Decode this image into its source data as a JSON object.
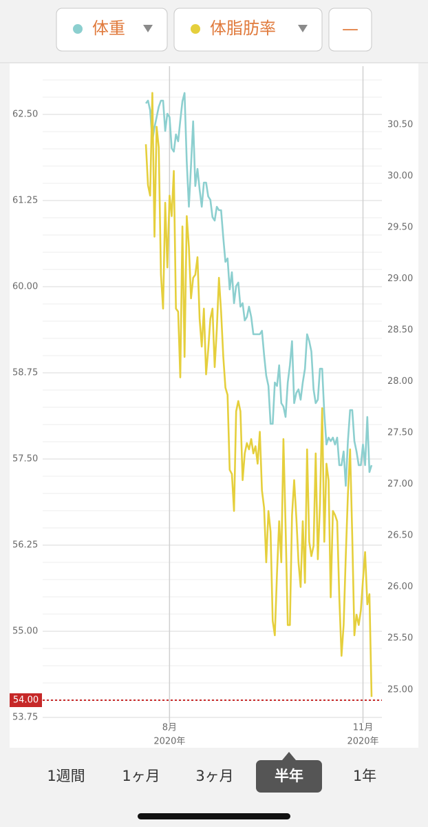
{
  "header": {
    "clear_button": "—"
  },
  "chart_data": {
    "type": "line",
    "categories": [
      null,
      null,
      null,
      null,
      null,
      null,
      null,
      null,
      null,
      null,
      null,
      "8月",
      null,
      null,
      null,
      null,
      null,
      null,
      null,
      null,
      null,
      null,
      null,
      null,
      null,
      null,
      null,
      null,
      null,
      null,
      null,
      null,
      null,
      null,
      null,
      null,
      null,
      null,
      null,
      null,
      null,
      null,
      null,
      null,
      null,
      null,
      null,
      null,
      null,
      null,
      null,
      null,
      null,
      null,
      null,
      null,
      null,
      null,
      null,
      null,
      null,
      null,
      null,
      null,
      null,
      null,
      null,
      null,
      null,
      null,
      null,
      null,
      null,
      null,
      null,
      null,
      null,
      null,
      null,
      null,
      null,
      null,
      null,
      null,
      null,
      null,
      null,
      null,
      null,
      null,
      null,
      null,
      null,
      null,
      null,
      null,
      null,
      null,
      null,
      null,
      null,
      "11月",
      null,
      null,
      null,
      null
    ],
    "x_sublabel": "2020年",
    "series": [
      {
        "name": "体重",
        "color": "#8ccfcf",
        "values": [
          62.66,
          62.7,
          62.56,
          62.11,
          62.31,
          62.46,
          62.61,
          62.7,
          62.7,
          62.26,
          62.51,
          62.46,
          62.01,
          61.96,
          62.21,
          62.11,
          62.41,
          62.69,
          62.81,
          61.81,
          61.16,
          61.76,
          62.4,
          61.46,
          61.71,
          61.41,
          61.16,
          61.51,
          61.51,
          61.31,
          61.26,
          61.01,
          60.96,
          61.16,
          61.11,
          61.11,
          60.71,
          60.36,
          60.41,
          59.96,
          60.21,
          59.76,
          60.01,
          60.06,
          59.71,
          59.76,
          59.51,
          59.56,
          59.71,
          59.56,
          59.31,
          59.31,
          59.31,
          59.31,
          59.36,
          59.01,
          58.71,
          58.56,
          58.01,
          58.01,
          58.61,
          58.56,
          58.86,
          58.31,
          58.26,
          58.11,
          58.61,
          58.86,
          59.21,
          58.31,
          58.46,
          58.51,
          58.36,
          58.61,
          58.81,
          59.31,
          59.21,
          59.06,
          58.51,
          58.31,
          58.36,
          58.81,
          58.81,
          58.16,
          57.71,
          57.81,
          57.76,
          57.81,
          57.71,
          57.81,
          57.41,
          57.41,
          57.61,
          57.11,
          57.76,
          58.21,
          58.21,
          57.76,
          57.61,
          57.41,
          57.41,
          57.71,
          57.41,
          58.11,
          57.31,
          57.41
        ]
      },
      {
        "name": "体脂肪率",
        "color": "#e5cf3c",
        "axis": "y2",
        "values": [
          30.31,
          29.91,
          29.81,
          30.81,
          29.41,
          30.48,
          30.28,
          29.04,
          28.71,
          29.74,
          29.11,
          29.81,
          29.61,
          30.05,
          28.71,
          28.68,
          28.04,
          29.51,
          28.24,
          29.61,
          29.31,
          28.81,
          29.01,
          29.04,
          29.21,
          28.61,
          28.34,
          28.71,
          28.07,
          28.31,
          28.61,
          28.71,
          28.14,
          28.51,
          29.01,
          28.68,
          28.24,
          27.94,
          27.87,
          27.14,
          27.1,
          26.74,
          27.71,
          27.81,
          27.71,
          27.04,
          27.3,
          27.4,
          27.34,
          27.44,
          27.3,
          27.37,
          27.2,
          27.51,
          26.94,
          26.77,
          26.24,
          26.74,
          26.54,
          25.67,
          25.53,
          26.14,
          26.64,
          26.24,
          27.44,
          26.6,
          25.63,
          25.63,
          26.7,
          27.04,
          26.67,
          26.24,
          26.0,
          26.64,
          26.04,
          27.34,
          26.44,
          26.3,
          26.4,
          27.3,
          26.27,
          26.8,
          27.74,
          26.44,
          27.2,
          27.04,
          25.9,
          26.74,
          26.7,
          26.64,
          25.9,
          25.33,
          25.63,
          26.3,
          26.9,
          27.34,
          26.5,
          25.53,
          25.73,
          25.63,
          25.77,
          26.07,
          26.34,
          25.83,
          25.93,
          24.93
        ]
      }
    ],
    "ylim": [
      53.75,
      63.2
    ],
    "yticks": [
      {
        "value": 53.75,
        "label": "53.75"
      },
      {
        "value": 55,
        "label": "55.00"
      },
      {
        "value": 56.25,
        "label": "56.25"
      },
      {
        "value": 57.5,
        "label": "57.50"
      },
      {
        "value": 58.75,
        "label": "58.75"
      },
      {
        "value": 60,
        "label": "60.00"
      },
      {
        "value": 61.25,
        "label": "61.25"
      },
      {
        "value": 62.5,
        "label": "62.50"
      }
    ],
    "minor_grid": [
      54.0,
      54.25,
      54.5,
      54.75,
      55.25,
      55.5,
      55.75,
      56.0,
      56.5,
      56.75,
      57.0,
      57.25,
      57.75,
      58.0,
      58.25,
      58.5,
      59.0,
      59.25,
      59.5,
      59.75,
      60.25,
      60.5,
      60.75,
      61.0,
      61.5,
      61.75,
      62.0,
      62.25,
      62.75,
      63.0
    ],
    "y2lim": [
      24.73,
      31.07
    ],
    "y2ticks": [
      {
        "value": 25,
        "label": "25.00"
      },
      {
        "value": 25.5,
        "label": "25.50"
      },
      {
        "value": 26,
        "label": "26.00"
      },
      {
        "value": 26.5,
        "label": "26.50"
      },
      {
        "value": 27,
        "label": "27.00"
      },
      {
        "value": 27.5,
        "label": "27.50"
      },
      {
        "value": 28,
        "label": "28.00"
      },
      {
        "value": 28.5,
        "label": "28.50"
      },
      {
        "value": 29,
        "label": "29.00"
      },
      {
        "value": 29.5,
        "label": "29.50"
      },
      {
        "value": 30,
        "label": "30.00"
      },
      {
        "value": 30.5,
        "label": "30.50"
      }
    ],
    "grid": true,
    "target_line": {
      "value": 54,
      "label": "54.00",
      "color": "#c62828"
    }
  },
  "tabs": {
    "items": [
      "1週間",
      "1ヶ月",
      "3ヶ月",
      "半年",
      "1年"
    ],
    "selected": 3
  }
}
